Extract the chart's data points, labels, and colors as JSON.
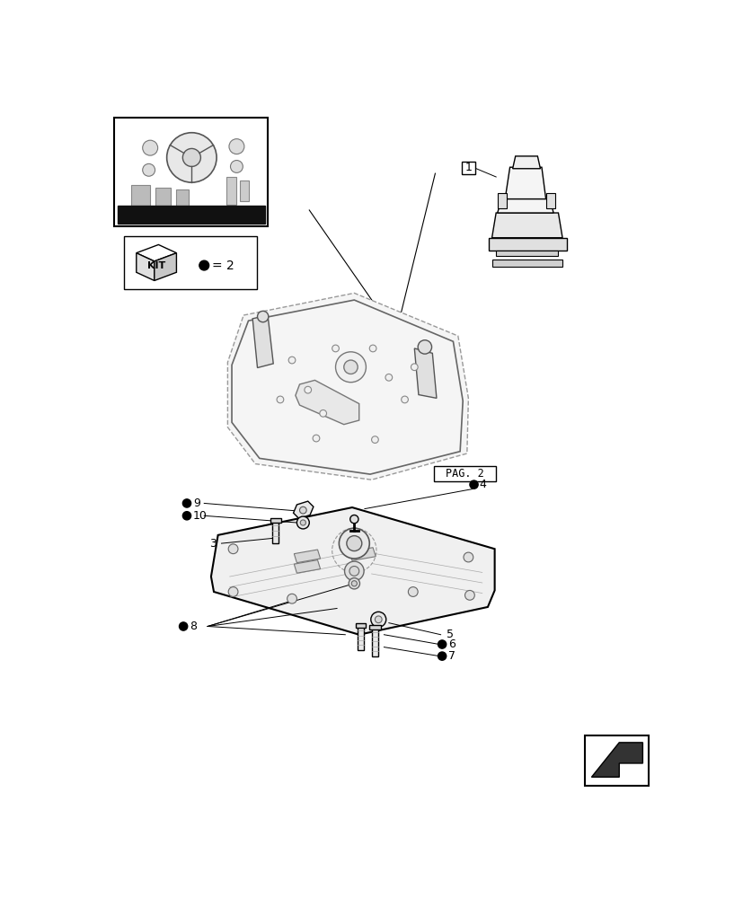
{
  "title": "",
  "background_color": "#ffffff",
  "page_width": 8.28,
  "page_height": 10.0,
  "dpi": 100,
  "parts": {
    "labels": [
      "1",
      "3",
      "4",
      "5",
      "6",
      "7",
      "8",
      "9",
      "10"
    ],
    "filled_dots": [
      "8",
      "9",
      "10",
      "6",
      "7"
    ],
    "pag2_label": "PAG. 2",
    "kit_label": "KIT",
    "kit_dot_text": "= 2"
  },
  "colors": {
    "black": "#000000",
    "white": "#ffffff",
    "light_gray": "#cccccc",
    "mid_gray": "#888888",
    "dark_gray": "#444444",
    "outline": "#222222"
  }
}
